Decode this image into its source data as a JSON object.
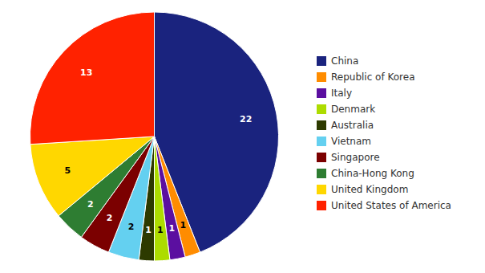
{
  "chart_data": {
    "type": "pie",
    "categories": [
      "China",
      "Republic of Korea",
      "Italy",
      "Denmark",
      "Australia",
      "Vietnam",
      "Singapore",
      "China-Hong Kong",
      "United Kingdom",
      "United States of America"
    ],
    "values": [
      22,
      1,
      1,
      1,
      1,
      2,
      2,
      2,
      5,
      13
    ],
    "colors": [
      "#1a237e",
      "#ff8c00",
      "#5b0fa0",
      "#addc00",
      "#2d3a00",
      "#64d0f0",
      "#7b0000",
      "#2e7d32",
      "#ffd700",
      "#ff2200"
    ],
    "data_labels": true,
    "legend": "right"
  }
}
